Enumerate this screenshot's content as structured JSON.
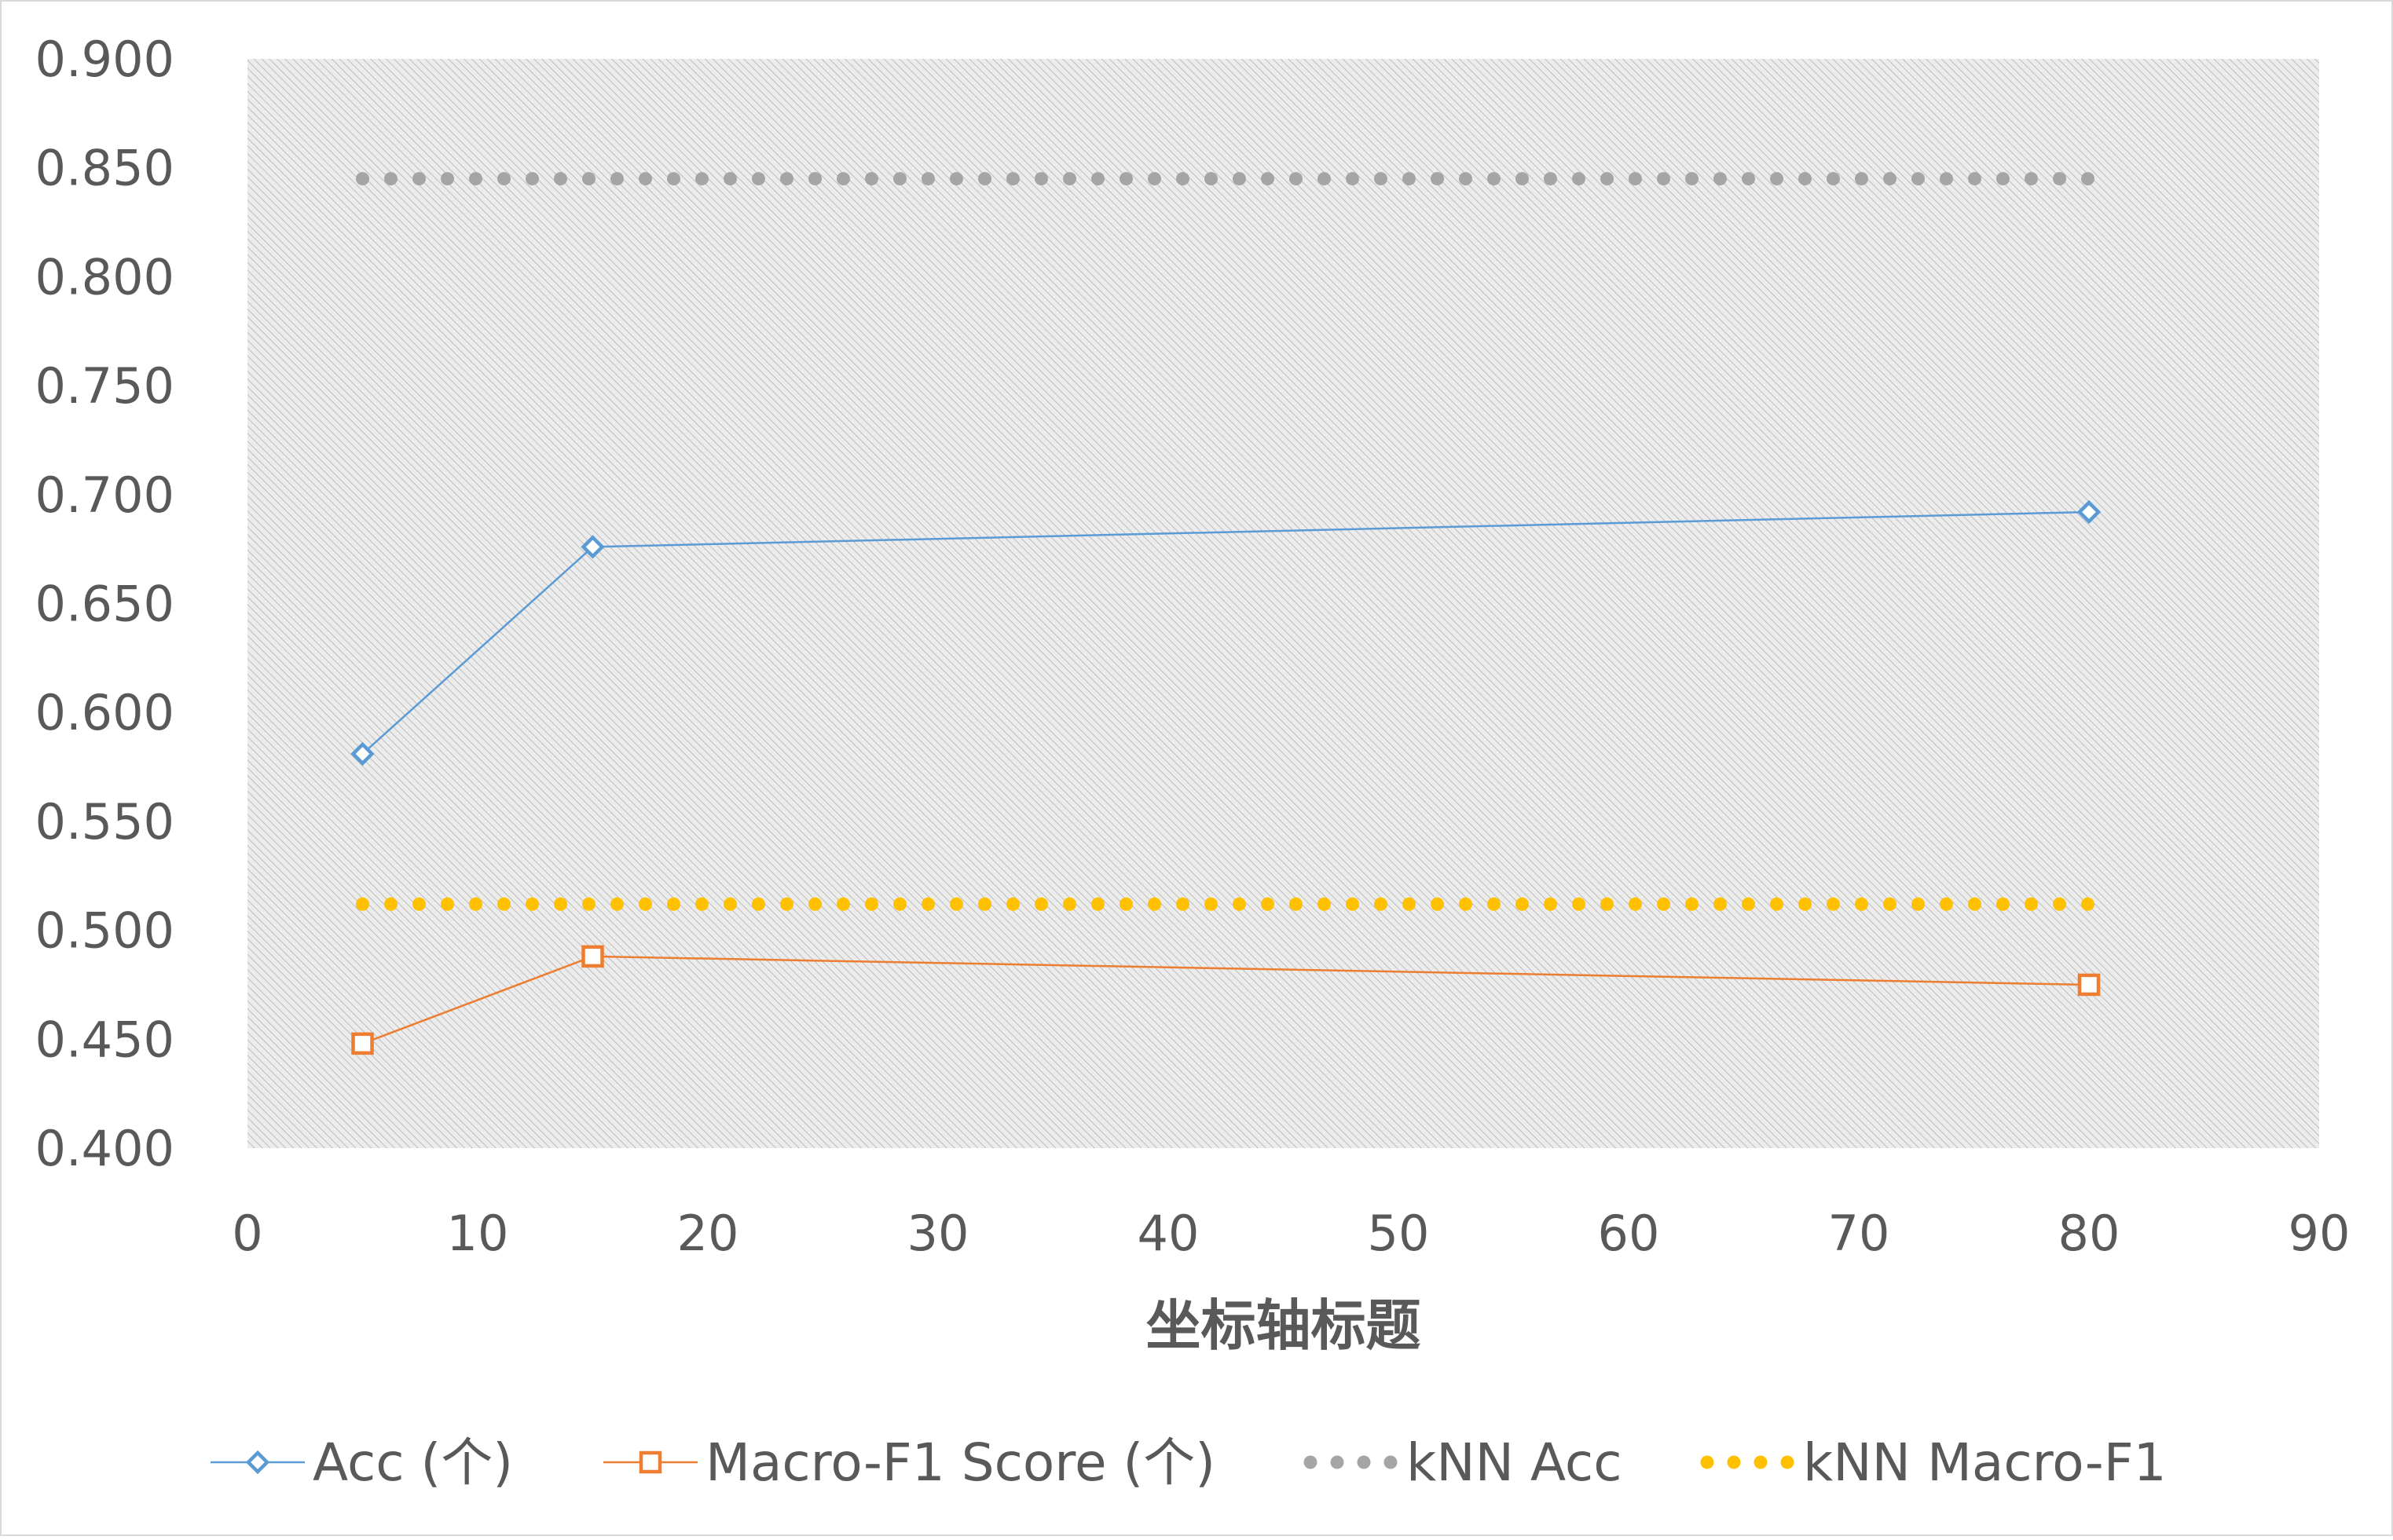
{
  "chart_data": {
    "type": "line",
    "xlabel": "坐标轴标题",
    "ylabel": "",
    "xlim": [
      0,
      90
    ],
    "ylim": [
      0.4,
      0.9
    ],
    "x_ticks": [
      "0",
      "10",
      "20",
      "30",
      "40",
      "50",
      "60",
      "70",
      "80",
      "90"
    ],
    "y_ticks": [
      "0.400",
      "0.450",
      "0.500",
      "0.550",
      "0.600",
      "0.650",
      "0.700",
      "0.750",
      "0.800",
      "0.850",
      "0.900"
    ],
    "grid": false,
    "legend_position": "bottom",
    "series": [
      {
        "name": "Acc (个)",
        "x": [
          5,
          15,
          80
        ],
        "values": [
          0.581,
          0.676,
          0.692
        ],
        "color": "#5B9BD5",
        "marker": "diamond",
        "style": "solid"
      },
      {
        "name": "Macro-F1 Score (个)",
        "x": [
          5,
          15,
          80
        ],
        "values": [
          0.448,
          0.488,
          0.475
        ],
        "color": "#ED7D31",
        "marker": "square",
        "style": "solid"
      },
      {
        "name": "kNN Acc",
        "x": [
          5,
          80
        ],
        "values": [
          0.845,
          0.845
        ],
        "color": "#A5A5A5",
        "marker": "none",
        "style": "dotted"
      },
      {
        "name": "kNN Macro-F1",
        "x": [
          5,
          80
        ],
        "values": [
          0.512,
          0.512
        ],
        "color": "#FFC000",
        "marker": "none",
        "style": "dotted"
      }
    ]
  }
}
